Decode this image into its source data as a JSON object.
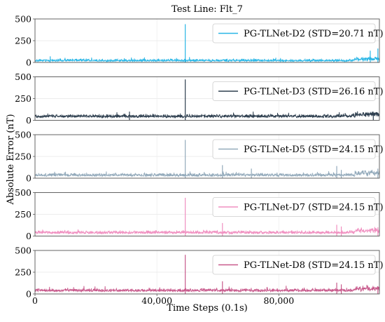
{
  "chart_data": {
    "type": "line",
    "title": "Test Line: Flt_7",
    "xlabel": "Time Steps (0.1s)",
    "ylabel": "Absolute Error (nT)",
    "xlim": [
      0,
      113000
    ],
    "ylim": [
      0,
      500
    ],
    "xticks": [
      0,
      40000,
      80000
    ],
    "xtick_labels": [
      "0",
      "40,000",
      "80,000"
    ],
    "yticks": [
      0,
      250,
      500
    ],
    "ytick_labels": [
      "0",
      "250",
      "500"
    ],
    "grid": true,
    "legend_position": "top-right",
    "panels": [
      {
        "name": "PG-TLNet-D2 (STD=20.71 nT)",
        "color": "#29b6e6",
        "baseline": 10,
        "noise": 22,
        "spikes": [
          {
            "x": 49300,
            "y": 440
          },
          {
            "x": 5000,
            "y": 70
          },
          {
            "x": 110000,
            "y": 135
          },
          {
            "x": 112500,
            "y": 160
          }
        ]
      },
      {
        "name": "PG-TLNet-D3 (STD=26.16 nT)",
        "color": "#2e3f4f",
        "baseline": 30,
        "noise": 30,
        "spikes": [
          {
            "x": 49300,
            "y": 470
          },
          {
            "x": 31000,
            "y": 100
          },
          {
            "x": 111000,
            "y": 95
          }
        ]
      },
      {
        "name": "PG-TLNet-D5 (STD=24.15 nT)",
        "color": "#93aabb",
        "baseline": 20,
        "noise": 28,
        "spikes": [
          {
            "x": 49300,
            "y": 440
          },
          {
            "x": 61500,
            "y": 150
          },
          {
            "x": 71000,
            "y": 110
          },
          {
            "x": 99000,
            "y": 140
          },
          {
            "x": 100500,
            "y": 95
          },
          {
            "x": 112500,
            "y": 110
          }
        ]
      },
      {
        "name": "PG-TLNet-D7 (STD=24.15 nT)",
        "color": "#f08fc0",
        "baseline": 25,
        "noise": 28,
        "spikes": [
          {
            "x": 49300,
            "y": 440
          },
          {
            "x": 61500,
            "y": 150
          },
          {
            "x": 99000,
            "y": 130
          },
          {
            "x": 100500,
            "y": 110
          },
          {
            "x": 112500,
            "y": 100
          }
        ]
      },
      {
        "name": "PG-TLNet-D8 (STD=24.15 nT)",
        "color": "#c85a8c",
        "baseline": 25,
        "noise": 28,
        "spikes": [
          {
            "x": 49300,
            "y": 450
          },
          {
            "x": 61500,
            "y": 145
          },
          {
            "x": 99000,
            "y": 130
          },
          {
            "x": 100500,
            "y": 110
          },
          {
            "x": 112500,
            "y": 90
          }
        ]
      }
    ]
  }
}
